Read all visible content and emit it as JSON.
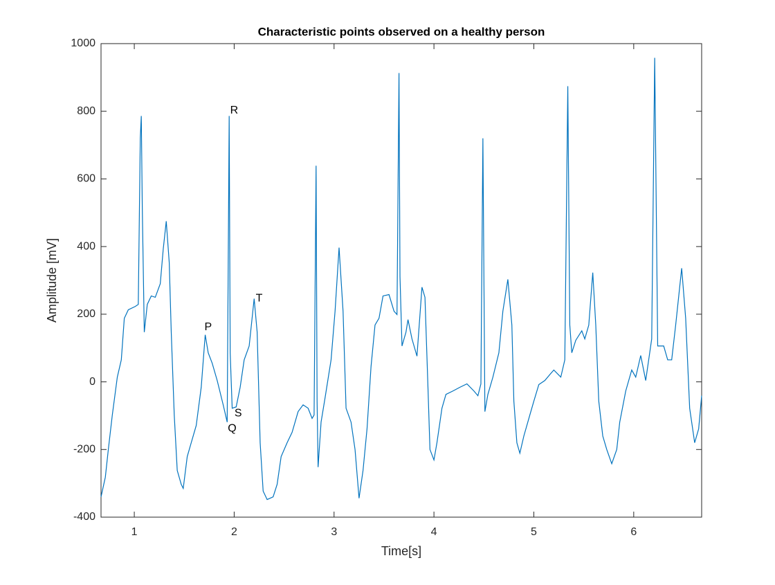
{
  "chart_data": {
    "type": "line",
    "title": "Characteristic points observed on a healthy person",
    "x_label": "Time[s]",
    "y_label": "Amplitude [mV]",
    "xlim": [
      0.667,
      6.68
    ],
    "ylim": [
      -400,
      1000
    ],
    "xticks": [
      1,
      2,
      3,
      4,
      5,
      6
    ],
    "yticks": [
      -400,
      -200,
      0,
      200,
      400,
      600,
      800,
      1000
    ],
    "grid": false,
    "series": [
      {
        "color": "#0072bd",
        "x": [
          0.667,
          0.71,
          0.74,
          0.78,
          0.83,
          0.87,
          0.9,
          0.94,
          1.01,
          1.04,
          1.06,
          1.07,
          1.08,
          1.1,
          1.13,
          1.17,
          1.21,
          1.26,
          1.29,
          1.32,
          1.35,
          1.37,
          1.4,
          1.43,
          1.47,
          1.49,
          1.53,
          1.57,
          1.62,
          1.67,
          1.71,
          1.74,
          1.78,
          1.83,
          1.89,
          1.93,
          1.95,
          1.96,
          1.98,
          2.02,
          2.06,
          2.1,
          2.15,
          2.2,
          2.23,
          2.26,
          2.29,
          2.33,
          2.39,
          2.43,
          2.47,
          2.53,
          2.58,
          2.64,
          2.69,
          2.74,
          2.78,
          2.8,
          2.82,
          2.83,
          2.84,
          2.87,
          2.91,
          2.97,
          3.01,
          3.05,
          3.09,
          3.12,
          3.17,
          3.21,
          3.25,
          3.29,
          3.33,
          3.37,
          3.41,
          3.45,
          3.49,
          3.55,
          3.6,
          3.63,
          3.65,
          3.66,
          3.68,
          3.72,
          3.74,
          3.78,
          3.83,
          3.88,
          3.91,
          3.94,
          3.96,
          4.0,
          4.03,
          4.08,
          4.12,
          4.19,
          4.26,
          4.33,
          4.4,
          4.44,
          4.47,
          4.49,
          4.51,
          4.54,
          4.59,
          4.65,
          4.69,
          4.74,
          4.78,
          4.8,
          4.83,
          4.86,
          4.9,
          4.96,
          5.0,
          5.05,
          5.11,
          5.17,
          5.2,
          5.27,
          5.31,
          5.34,
          5.36,
          5.38,
          5.42,
          5.48,
          5.51,
          5.55,
          5.59,
          5.62,
          5.65,
          5.69,
          5.73,
          5.78,
          5.83,
          5.86,
          5.92,
          5.98,
          6.02,
          6.07,
          6.12,
          6.14,
          6.18,
          6.21,
          6.24,
          6.3,
          6.34,
          6.38,
          6.42,
          6.48,
          6.52,
          6.56,
          6.61,
          6.65,
          6.68
        ],
        "values": [
          -340,
          -282,
          -200,
          -98,
          14,
          65,
          188,
          213,
          223,
          229,
          720,
          786,
          516,
          147,
          229,
          254,
          250,
          290,
          393,
          475,
          352,
          147,
          -98,
          -262,
          -303,
          -315,
          -221,
          -180,
          -129,
          -16,
          139,
          86,
          55,
          4,
          -68,
          -119,
          786,
          86,
          -78,
          -74,
          -16,
          65,
          106,
          246,
          147,
          -180,
          -323,
          -348,
          -340,
          -303,
          -221,
          -180,
          -149,
          -88,
          -68,
          -78,
          -108,
          -98,
          639,
          -57,
          -252,
          -119,
          -47,
          65,
          209,
          397,
          209,
          -78,
          -119,
          -200,
          -344,
          -262,
          -139,
          45,
          168,
          188,
          254,
          258,
          209,
          199,
          913,
          311,
          106,
          147,
          184,
          127,
          76,
          280,
          250,
          -16,
          -200,
          -231,
          -180,
          -78,
          -37,
          -27,
          -16,
          -6,
          -27,
          -41,
          -6,
          720,
          -88,
          -37,
          14,
          86,
          209,
          303,
          168,
          -57,
          -180,
          -211,
          -160,
          -98,
          -57,
          -8,
          4,
          25,
          35,
          14,
          65,
          874,
          168,
          86,
          123,
          151,
          127,
          168,
          323,
          168,
          -57,
          -160,
          -200,
          -242,
          -200,
          -119,
          -27,
          35,
          14,
          78,
          4,
          45,
          127,
          958,
          106,
          106,
          65,
          65,
          168,
          336,
          188,
          -78,
          -180,
          -139,
          -41
        ]
      }
    ],
    "annotations": [
      {
        "text": "P",
        "x": 1.74,
        "y": 161
      },
      {
        "text": "R",
        "x": 2.0,
        "y": 802
      },
      {
        "text": "T",
        "x": 2.25,
        "y": 246
      },
      {
        "text": "S",
        "x": 2.04,
        "y": -94
      },
      {
        "text": "Q",
        "x": 1.98,
        "y": -139
      }
    ]
  }
}
